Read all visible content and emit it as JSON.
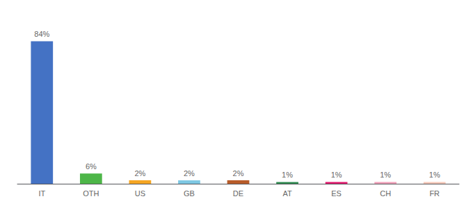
{
  "chart_data": {
    "type": "bar",
    "categories": [
      "IT",
      "OTH",
      "US",
      "GB",
      "DE",
      "AT",
      "ES",
      "CH",
      "FR"
    ],
    "values": [
      84,
      6,
      2,
      2,
      2,
      1,
      1,
      1,
      1
    ],
    "value_labels": [
      "84%",
      "6%",
      "2%",
      "2%",
      "2%",
      "1%",
      "1%",
      "1%",
      "1%"
    ],
    "colors": [
      "#4472c4",
      "#4db648",
      "#f5a623",
      "#7ec8e3",
      "#b85c2a",
      "#2d8a4e",
      "#e0176c",
      "#f0a0b8",
      "#f5c8b8"
    ],
    "ylim": [
      0,
      96
    ],
    "grid": false,
    "data_labels": true,
    "tick_labels": "x"
  }
}
